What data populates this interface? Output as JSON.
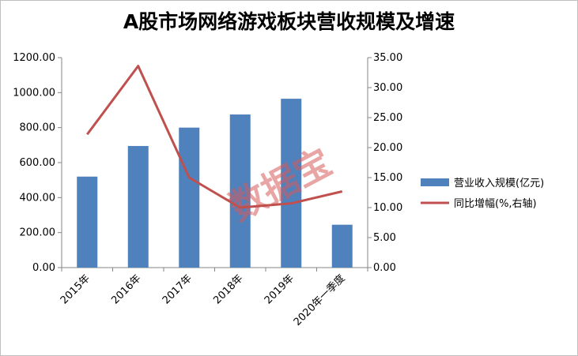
{
  "chart_data": {
    "type": "bar",
    "title": "A股市场网络游戏板块营收规模及增速",
    "categories": [
      "2015年",
      "2016年",
      "2017年",
      "2018年",
      "2019年",
      "2020年一季度"
    ],
    "series": [
      {
        "name": "营业收入规模(亿元)",
        "type": "bar",
        "axis": "left",
        "color": "#4f81bd",
        "values": [
          520,
          695,
          800,
          875,
          965,
          245
        ]
      },
      {
        "name": "同比增幅(%,右轴)",
        "type": "line",
        "axis": "right",
        "color": "#c0504d",
        "values": [
          22.2,
          33.6,
          15.0,
          10.0,
          10.7,
          12.7
        ]
      }
    ],
    "y_left": {
      "range": [
        0,
        1200
      ],
      "ticks": [
        "0.00",
        "200.00",
        "400.00",
        "600.00",
        "800.00",
        "1000.00",
        "1200.00"
      ]
    },
    "y_right": {
      "range": [
        0,
        35
      ],
      "ticks": [
        "0.00",
        "5.00",
        "10.00",
        "15.00",
        "20.00",
        "25.00",
        "30.00",
        "35.00"
      ]
    },
    "grid": false,
    "legend": "right",
    "watermark": "数据宝"
  }
}
